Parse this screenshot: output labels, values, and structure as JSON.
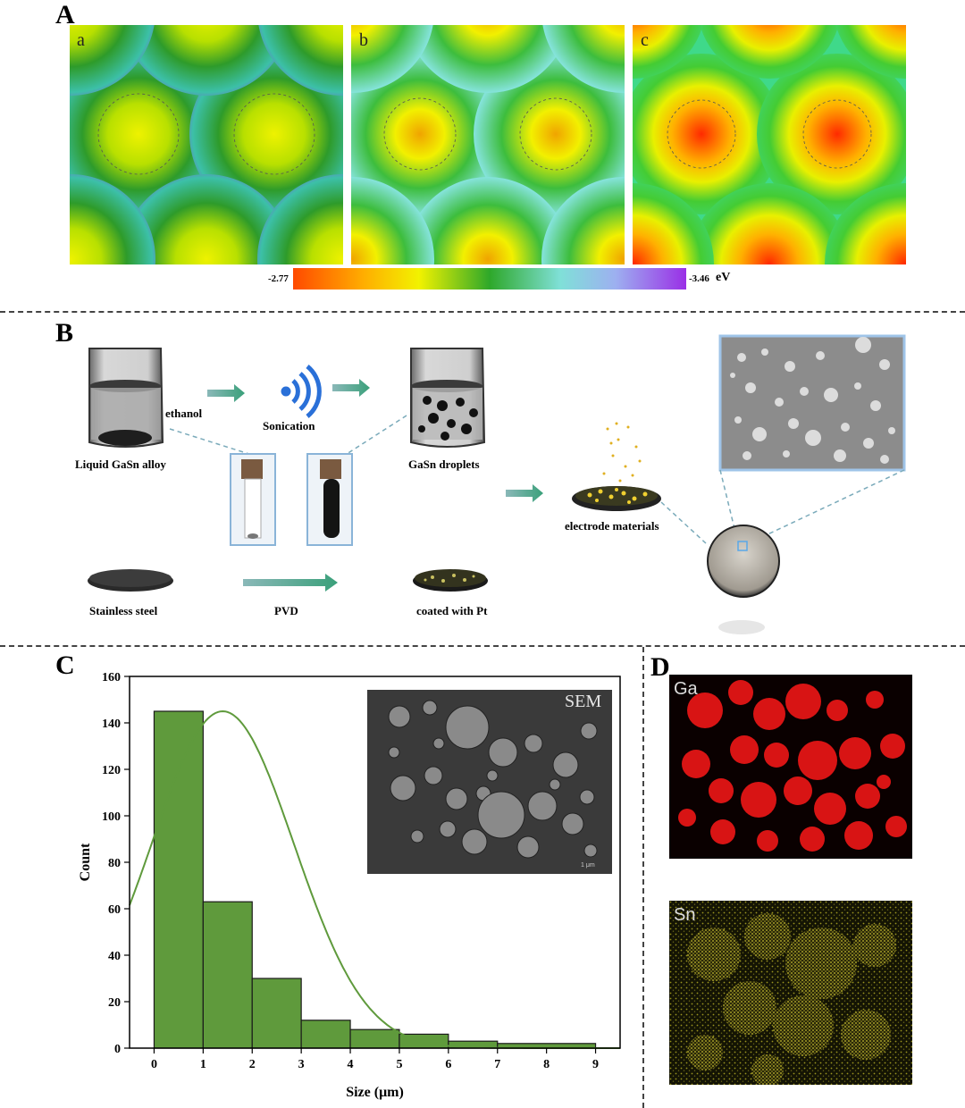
{
  "panels": {
    "A": "A",
    "B": "B",
    "C": "C",
    "D": "D"
  },
  "panelA": {
    "maps": [
      {
        "label": "a",
        "palette": [
          "#9b2fe8",
          "#2e9b2a",
          "#d6e800"
        ]
      },
      {
        "label": "b",
        "palette": [
          "#8ae6e6",
          "#3dbd3d",
          "#f0a400"
        ]
      },
      {
        "label": "c",
        "palette": [
          "#3fd98a",
          "#44cc33",
          "#ff2a00"
        ]
      }
    ],
    "colorbar": {
      "min_label": "-2.77",
      "max_label": "-3.46",
      "unit": "eV",
      "colors": [
        "#ff4a00",
        "#ffae00",
        "#f2f200",
        "#2ea82a",
        "#80e0d8",
        "#9db0f0",
        "#9a2fe6"
      ]
    }
  },
  "panelB": {
    "ethanol": "ethanol",
    "sonication": "Sonication",
    "liquid_alloy": "Liquid GaSn alloy",
    "droplets": "GaSn droplets",
    "electrode": "electrode materials",
    "stainless": "Stainless steel",
    "pvd": "PVD",
    "coated": "coated with Pt"
  },
  "panelC": {
    "inset_label": "SEM",
    "scale_text": "1 μm"
  },
  "panelD": {
    "maps": [
      {
        "label": "Ga",
        "color": "#e01010"
      },
      {
        "label": "Sn",
        "color": "#c8c020"
      }
    ]
  },
  "chart_data": {
    "type": "bar",
    "title": "",
    "xlabel": "Size (μm)",
    "ylabel": "Count",
    "bins": [
      [
        0,
        1
      ],
      [
        1,
        2
      ],
      [
        2,
        3
      ],
      [
        3,
        4
      ],
      [
        4,
        5
      ],
      [
        5,
        6
      ],
      [
        6,
        7
      ],
      [
        7,
        9
      ]
    ],
    "values": [
      145,
      63,
      30,
      12,
      8,
      6,
      3,
      2
    ],
    "x_ticks": [
      0,
      1,
      2,
      3,
      4,
      5,
      6,
      7,
      8,
      9
    ],
    "y_ticks": [
      0,
      20,
      40,
      60,
      80,
      100,
      120,
      140,
      160
    ],
    "xlim": [
      -0.5,
      9.5
    ],
    "ylim": [
      0,
      160
    ],
    "bar_color": "#5f9a3c",
    "fit_curve": {
      "type": "gaussian",
      "peak_x": 1.4,
      "peak_y": 145,
      "sigma": 1.45,
      "color": "#5f9a3c"
    }
  }
}
